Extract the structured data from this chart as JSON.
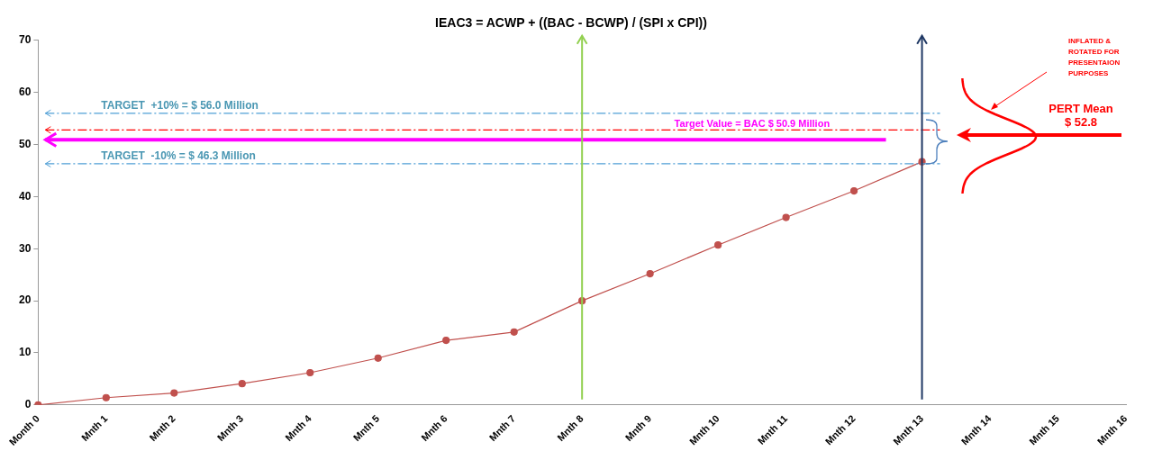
{
  "chart_data": {
    "type": "line",
    "title": "IEAC3 = ACWP + ((BAC - BCWP) / (SPI x CPI))",
    "categories": [
      "Month 0",
      "Mnth 1",
      "Mnth 2",
      "Mnth 3",
      "Mnth 4",
      "Mnth 5",
      "Mnth 6",
      "Mnth 7",
      "Mnth 8",
      "Mnth 9",
      "Mnth 10",
      "Mnth 11",
      "Mnth 12",
      "Mnth 13",
      "Mnth 14",
      "Mnth 15",
      "Mnth 16"
    ],
    "series": [
      {
        "color": "#c0504d",
        "values": [
          0,
          1.4,
          2.3,
          4.1,
          6.2,
          9.0,
          12.4,
          14.0,
          20.0,
          25.2,
          30.7,
          36.0,
          41.1,
          46.7,
          null,
          null,
          null
        ]
      }
    ],
    "ylim": [
      0,
      70
    ],
    "yticks": [
      0,
      10,
      20,
      30,
      40,
      50,
      60,
      70
    ],
    "grid": false,
    "legend": false,
    "marker": "circle",
    "line_style": "solid",
    "ref_lines": [
      {
        "axis": "y",
        "value": 56.0,
        "label": "TARGET  +10% = $ 56.0 Million",
        "color": "#4f9fd6",
        "line_style": "dashed"
      },
      {
        "axis": "y",
        "value": 46.3,
        "label": "TARGET  -10% = $ 46.3 Million",
        "color": "#4f9fd6",
        "line_style": "dashed"
      },
      {
        "axis": "y",
        "value": 52.8,
        "color": "#ff0000",
        "line_style": "dashed"
      },
      {
        "axis": "y",
        "value": 50.9,
        "label": "Target Value = BAC $ 50.9 Million",
        "color": "#ff00ff",
        "line_style": "solid"
      },
      {
        "axis": "x",
        "value": "Mnth 8",
        "color": "#92d050",
        "line_style": "solid"
      },
      {
        "axis": "x",
        "value": "Mnth 13",
        "color": "#1f3864",
        "line_style": "solid"
      }
    ],
    "annotations": [
      "PERT Mean $ 52.8",
      "INFLATED & ROTATED FOR PRESENTAION PURPOSES"
    ]
  }
}
